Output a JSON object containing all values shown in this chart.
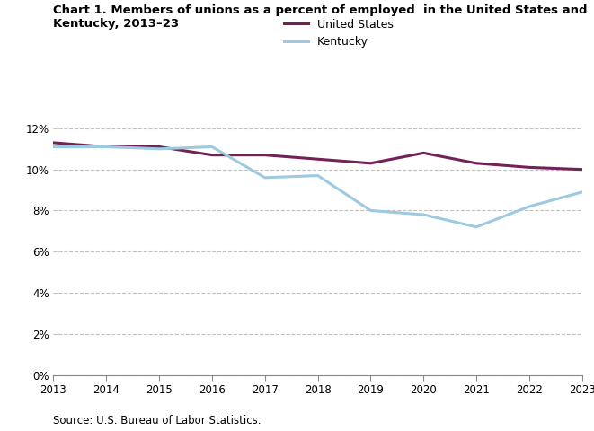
{
  "title_line1": "Chart 1. Members of unions as a percent of employed  in the United States and",
  "title_line2": "Kentucky, 2013–23",
  "years": [
    2013,
    2014,
    2015,
    2016,
    2017,
    2018,
    2019,
    2020,
    2021,
    2022,
    2023
  ],
  "us_values": [
    11.3,
    11.1,
    11.1,
    10.7,
    10.7,
    10.5,
    10.3,
    10.8,
    10.3,
    10.1,
    10.0
  ],
  "ky_values": [
    11.1,
    11.1,
    11.0,
    11.1,
    9.6,
    9.7,
    8.0,
    7.8,
    7.2,
    8.2,
    8.9
  ],
  "us_color": "#722257",
  "ky_color": "#9ecae1",
  "us_label": "United States",
  "ky_label": "Kentucky",
  "ylim": [
    0,
    13
  ],
  "yticks": [
    0,
    2,
    4,
    6,
    8,
    10,
    12
  ],
  "source": "Source: U.S. Bureau of Labor Statistics.",
  "background_color": "#ffffff",
  "grid_color": "#c0c0c0",
  "linewidth": 2.2
}
